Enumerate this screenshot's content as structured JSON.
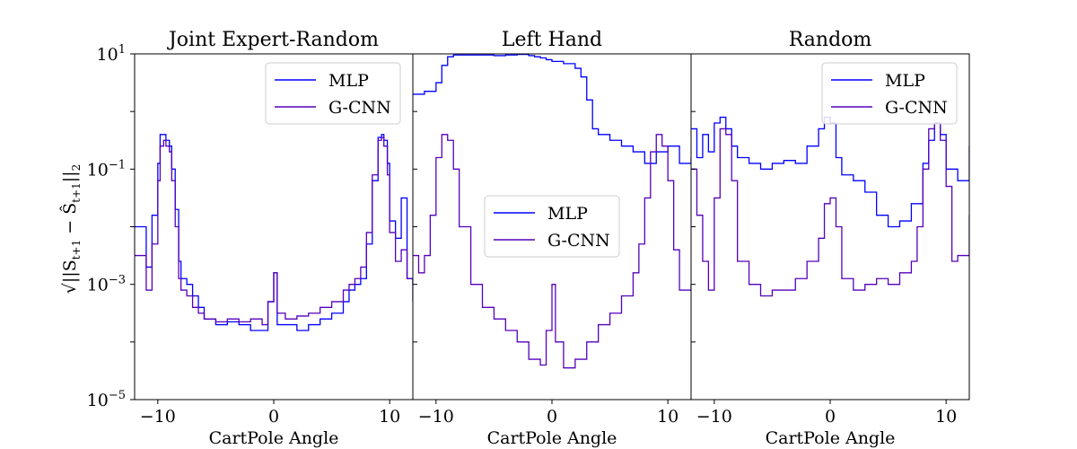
{
  "figure": {
    "ylabel": "√||S_{t+1} − Ŝ_{t+1}||₂",
    "ylabel_parts": {
      "root": "√",
      "open": "||S",
      "sub1": "t+1",
      "minus": " − Ŝ",
      "sub2": "t+1",
      "close": "||",
      "sub3": "2"
    }
  },
  "chart_data": [
    {
      "type": "line",
      "step": true,
      "title": "Joint Expert-Random",
      "xlabel": "CartPole Angle",
      "ylabel": "√||S_{t+1} − Ŝ_{t+1}||₂",
      "xlim": [
        -12,
        12
      ],
      "ylim_log10": [
        -5,
        1
      ],
      "yscale": "log",
      "xticks": [
        -10,
        0,
        10
      ],
      "xtick_labels": [
        "−10",
        "0",
        "10"
      ],
      "ytick_exponents": [
        -5,
        -3,
        -1,
        1
      ],
      "ytick_labels": [
        "10",
        "10",
        "10",
        "10"
      ],
      "ytick_superscripts": [
        "−5",
        "−3",
        "−1",
        "1"
      ],
      "legend": "top-right",
      "series": [
        {
          "name": "MLP",
          "color": "#0000ff",
          "x": [
            -12.0,
            -11.0,
            -10.5,
            -10.0,
            -9.8,
            -9.5,
            -9.3,
            -9.0,
            -8.8,
            -8.5,
            -8.2,
            -8.0,
            -7.5,
            -7.0,
            -6.5,
            -6.0,
            -5.0,
            -4.0,
            -3.0,
            -2.0,
            -1.0,
            -0.5,
            0.0,
            0.3,
            1.0,
            2.0,
            3.0,
            4.0,
            5.0,
            6.0,
            6.5,
            7.0,
            7.5,
            8.0,
            8.5,
            9.0,
            9.3,
            9.5,
            9.8,
            10.0,
            10.5,
            11.0,
            11.5,
            12.0
          ],
          "y": [
            -2.0,
            -2.7,
            -1.8,
            -0.9,
            -0.4,
            -0.4,
            -0.5,
            -0.6,
            -1.0,
            -1.7,
            -2.6,
            -2.9,
            -3.0,
            -3.2,
            -3.4,
            -3.6,
            -3.7,
            -3.65,
            -3.7,
            -3.8,
            -3.8,
            -3.3,
            -2.8,
            -3.7,
            -3.7,
            -3.8,
            -3.7,
            -3.6,
            -3.5,
            -3.3,
            -3.1,
            -3.0,
            -2.9,
            -2.3,
            -1.2,
            -0.45,
            -0.4,
            -0.5,
            -0.9,
            -1.9,
            -2.2,
            -1.5,
            -2.9,
            -3.3
          ]
        },
        {
          "name": "G-CNN",
          "color": "#5500bb",
          "x": [
            -12.0,
            -11.0,
            -10.5,
            -10.0,
            -9.8,
            -9.5,
            -9.3,
            -9.0,
            -8.8,
            -8.5,
            -8.2,
            -8.0,
            -7.5,
            -7.0,
            -6.5,
            -6.0,
            -5.0,
            -4.0,
            -3.0,
            -2.0,
            -1.0,
            -0.5,
            0.0,
            0.3,
            1.0,
            2.0,
            3.0,
            4.0,
            5.0,
            6.0,
            6.5,
            7.0,
            7.5,
            8.0,
            8.5,
            9.0,
            9.3,
            9.5,
            9.8,
            10.0,
            10.5,
            11.0,
            11.5,
            12.0
          ],
          "y": [
            -2.5,
            -3.1,
            -2.3,
            -1.2,
            -0.6,
            -0.5,
            -0.6,
            -0.7,
            -1.2,
            -2.0,
            -2.9,
            -3.1,
            -3.2,
            -3.4,
            -3.5,
            -3.6,
            -3.65,
            -3.6,
            -3.65,
            -3.6,
            -3.7,
            -3.3,
            -2.8,
            -3.5,
            -3.6,
            -3.55,
            -3.5,
            -3.4,
            -3.3,
            -3.1,
            -3.0,
            -2.9,
            -2.7,
            -2.1,
            -1.1,
            -0.5,
            -0.45,
            -0.6,
            -1.1,
            -2.1,
            -2.6,
            -2.4,
            -2.9,
            -3.0
          ]
        }
      ]
    },
    {
      "type": "line",
      "step": true,
      "title": "Left Hand",
      "xlabel": "CartPole Angle",
      "xlim": [
        -12,
        12
      ],
      "ylim_log10": [
        -5,
        1
      ],
      "yscale": "log",
      "xticks": [
        -10,
        0,
        10
      ],
      "xtick_labels": [
        "−10",
        "0",
        "10"
      ],
      "legend": "center",
      "series": [
        {
          "name": "MLP",
          "color": "#0000ff",
          "x": [
            -12.0,
            -11.0,
            -10.0,
            -9.5,
            -9.0,
            -8.5,
            -8.0,
            -7.0,
            -6.0,
            -5.0,
            -4.0,
            -3.0,
            -2.0,
            -1.5,
            -1.0,
            -0.5,
            0.0,
            1.0,
            2.0,
            2.5,
            3.0,
            3.5,
            4.0,
            5.0,
            6.0,
            7.0,
            8.0,
            9.0,
            10.0,
            11.0,
            12.0
          ],
          "y": [
            0.3,
            0.35,
            0.5,
            0.8,
            0.95,
            0.98,
            0.98,
            0.98,
            0.98,
            0.97,
            0.98,
            0.99,
            0.97,
            0.95,
            0.93,
            0.9,
            0.87,
            0.83,
            0.75,
            0.6,
            0.2,
            -0.3,
            -0.4,
            -0.5,
            -0.6,
            -0.7,
            -0.9,
            -0.7,
            -0.6,
            -0.9,
            -0.8
          ]
        },
        {
          "name": "G-CNN",
          "color": "#5500bb",
          "x": [
            -12.0,
            -11.5,
            -11.0,
            -10.5,
            -10.0,
            -9.5,
            -9.0,
            -8.5,
            -8.0,
            -7.0,
            -6.0,
            -5.0,
            -4.0,
            -3.0,
            -2.0,
            -1.0,
            -0.5,
            0.0,
            0.3,
            1.0,
            2.0,
            3.0,
            4.0,
            5.0,
            6.0,
            7.0,
            7.5,
            8.0,
            8.5,
            9.0,
            9.5,
            10.0,
            10.5,
            11.0,
            12.0
          ],
          "y": [
            -2.5,
            -2.8,
            -2.5,
            -1.8,
            -0.8,
            -0.4,
            -0.5,
            -1.0,
            -2.0,
            -3.0,
            -3.4,
            -3.6,
            -3.8,
            -4.0,
            -4.3,
            -4.4,
            -3.8,
            -3.0,
            -4.0,
            -4.45,
            -4.3,
            -4.0,
            -3.7,
            -3.5,
            -3.2,
            -2.8,
            -2.3,
            -1.5,
            -0.7,
            -0.4,
            -0.6,
            -1.2,
            -2.4,
            -3.1,
            -3.0
          ]
        }
      ]
    },
    {
      "type": "line",
      "step": true,
      "title": "Random",
      "xlabel": "CartPole Angle",
      "xlim": [
        -12,
        12
      ],
      "ylim_log10": [
        -5,
        1
      ],
      "yscale": "log",
      "xticks": [
        -10,
        0,
        10
      ],
      "xtick_labels": [
        "−10",
        "0",
        "10"
      ],
      "legend": "top-right",
      "series": [
        {
          "name": "MLP",
          "color": "#0000ff",
          "x": [
            -12.0,
            -11.5,
            -11.0,
            -10.5,
            -10.0,
            -9.5,
            -9.0,
            -8.5,
            -8.0,
            -7.0,
            -6.0,
            -5.0,
            -4.0,
            -3.0,
            -2.0,
            -1.0,
            -0.5,
            0.0,
            0.5,
            1.0,
            2.0,
            3.0,
            4.0,
            5.0,
            6.0,
            7.0,
            8.0,
            8.5,
            9.0,
            9.5,
            10.0,
            11.0,
            12.0
          ],
          "y": [
            -0.3,
            -0.8,
            -0.4,
            -0.7,
            -0.2,
            -0.1,
            -0.3,
            -0.6,
            -0.8,
            -0.9,
            -1.0,
            -0.9,
            -0.85,
            -0.9,
            -0.6,
            -0.3,
            -0.1,
            -0.2,
            -0.8,
            -1.1,
            -1.2,
            -1.4,
            -1.8,
            -2.0,
            -1.9,
            -1.6,
            -0.9,
            -0.5,
            -0.2,
            -0.4,
            -1.0,
            -1.2,
            -0.6
          ]
        },
        {
          "name": "G-CNN",
          "color": "#5500bb",
          "x": [
            -12.0,
            -11.5,
            -11.0,
            -10.5,
            -10.0,
            -9.5,
            -9.0,
            -8.5,
            -8.0,
            -7.0,
            -6.0,
            -5.0,
            -4.0,
            -3.0,
            -2.0,
            -1.0,
            -0.5,
            0.0,
            0.5,
            1.0,
            2.0,
            3.0,
            4.0,
            5.0,
            6.0,
            7.0,
            7.5,
            8.0,
            8.5,
            9.0,
            9.5,
            10.0,
            10.5,
            11.0,
            12.0
          ],
          "y": [
            -1.0,
            -1.8,
            -2.6,
            -3.1,
            -1.5,
            -0.3,
            -0.4,
            -1.2,
            -2.6,
            -3.0,
            -3.2,
            -3.1,
            -3.1,
            -2.9,
            -2.6,
            -2.2,
            -1.6,
            -1.5,
            -2.0,
            -2.9,
            -3.1,
            -3.0,
            -2.9,
            -3.0,
            -2.8,
            -2.6,
            -2.0,
            -1.0,
            -0.3,
            -0.2,
            -0.5,
            -1.3,
            -2.6,
            -2.5,
            -1.8
          ]
        }
      ]
    }
  ]
}
